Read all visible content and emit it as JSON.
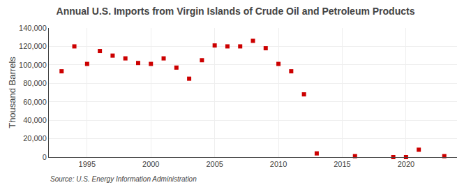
{
  "chart_data": {
    "type": "scatter",
    "title": "Annual U.S. Imports from Virgin Islands of Crude Oil and Petroleum Products",
    "ylabel": "Thousand Barrels",
    "annotation": "Source: U.S. Energy Information Administration",
    "x": [
      1993,
      1994,
      1995,
      1996,
      1997,
      1998,
      1999,
      2000,
      2001,
      2002,
      2003,
      2004,
      2005,
      2006,
      2007,
      2008,
      2009,
      2010,
      2011,
      2012,
      2013,
      2016,
      2019,
      2020,
      2021,
      2023
    ],
    "values": [
      93000,
      120000,
      101000,
      115000,
      110000,
      107000,
      102000,
      101000,
      107000,
      97000,
      85000,
      105000,
      121000,
      120000,
      120000,
      126000,
      118000,
      101000,
      93000,
      68000,
      4000,
      1000,
      0,
      0,
      8000,
      1000
    ],
    "color": "#cc0000",
    "marker": "square",
    "xlim": [
      1992,
      2024
    ],
    "xticks": [
      1995,
      2000,
      2005,
      2010,
      2015,
      2020
    ],
    "ylim": [
      0,
      140000
    ],
    "yticks": [
      0,
      {
        "value": 20000,
        "label": "20,000"
      },
      {
        "value": 40000,
        "label": "40,000"
      },
      {
        "value": 60000,
        "label": "60,000"
      },
      {
        "value": 80000,
        "label": "80,000"
      },
      {
        "value": 100000,
        "label": "100,000"
      },
      {
        "value": 120000,
        "label": "120,000"
      },
      {
        "value": 140000,
        "label": "140,000"
      }
    ],
    "grid": true
  }
}
